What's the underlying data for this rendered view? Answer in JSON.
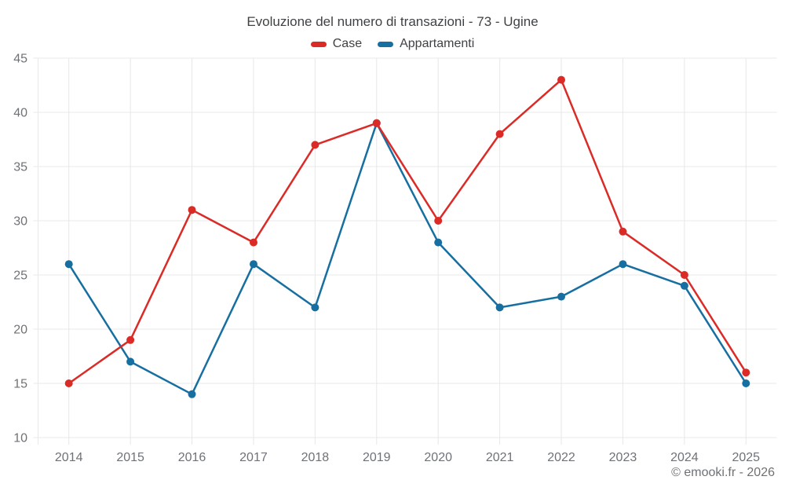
{
  "title": "Evoluzione del numero di transazioni - 73 - Ugine",
  "footer": "© emooki.fr - 2026",
  "chart_data": {
    "type": "line",
    "title": "Evoluzione del numero di transazioni - 73 - Ugine",
    "categories": [
      "2014",
      "2015",
      "2016",
      "2017",
      "2018",
      "2019",
      "2020",
      "2021",
      "2022",
      "2023",
      "2024",
      "2025"
    ],
    "series": [
      {
        "name": "Case",
        "color": "#db2b27",
        "values": [
          15,
          19,
          31,
          28,
          37,
          39,
          30,
          38,
          43,
          29,
          25,
          16
        ]
      },
      {
        "name": "Appartamenti",
        "color": "#176fa1",
        "values": [
          26,
          17,
          14,
          26,
          22,
          39,
          28,
          22,
          23,
          26,
          24,
          15
        ]
      }
    ],
    "xlabel": "",
    "ylabel": "",
    "ylim": [
      10,
      45
    ],
    "yticks": [
      10,
      15,
      20,
      25,
      30,
      35,
      40,
      45
    ],
    "grid": true,
    "grid_color": "#e8e8e8",
    "legend_position": "top",
    "marker": "circle"
  }
}
